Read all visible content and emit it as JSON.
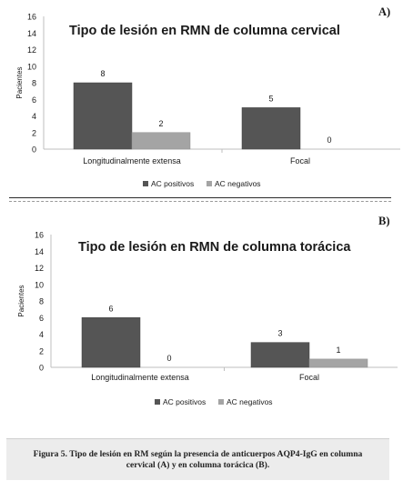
{
  "colors": {
    "ac_positivos": "#555555",
    "ac_negativos": "#a4a4a4",
    "axis": "#bfbfbf",
    "text": "#1a1a1a"
  },
  "chart_data": [
    {
      "type": "bar",
      "panel_label": "A)",
      "title": "Tipo de lesión en RMN de columna cervical",
      "ylabel": "Pacientes",
      "xlabel": "",
      "categories": [
        "Longitudinalmente extensa",
        "Focal"
      ],
      "yticks": [
        "0",
        "2",
        "4",
        "6",
        "8",
        "10",
        "12",
        "14",
        "16"
      ],
      "ylim": [
        0,
        16
      ],
      "grid": false,
      "legend_position": "bottom",
      "series": [
        {
          "name": "AC positivos",
          "values": [
            8,
            5
          ],
          "labels": [
            "8",
            "5"
          ]
        },
        {
          "name": "AC negativos",
          "values": [
            2,
            0
          ],
          "labels": [
            "2",
            "0"
          ]
        }
      ]
    },
    {
      "type": "bar",
      "panel_label": "B)",
      "title": "Tipo de lesión en RMN de columna torácica",
      "ylabel": "Pacientes",
      "xlabel": "",
      "categories": [
        "Longitudinalmente extensa",
        "Focal"
      ],
      "yticks": [
        "0",
        "2",
        "4",
        "6",
        "8",
        "10",
        "12",
        "14",
        "16"
      ],
      "ylim": [
        0,
        16
      ],
      "grid": false,
      "legend_position": "bottom",
      "series": [
        {
          "name": "AC positivos",
          "values": [
            6,
            3
          ],
          "labels": [
            "6",
            "3"
          ]
        },
        {
          "name": "AC negativos",
          "values": [
            0,
            1
          ],
          "labels": [
            "0",
            "1"
          ]
        }
      ]
    }
  ],
  "caption": "Figura 5. Tipo de lesión en RM según la presencia de anticuerpos AQP4-IgG en columna cervical (A) y en columna torácica (B)."
}
